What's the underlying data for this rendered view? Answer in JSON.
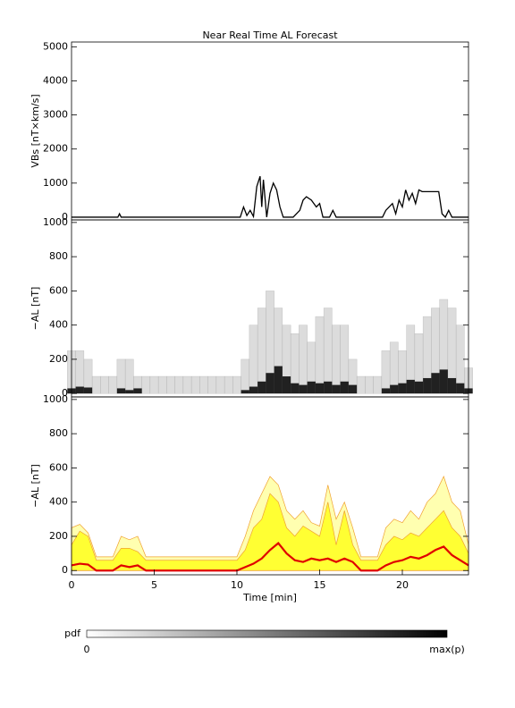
{
  "chart_data": [
    {
      "type": "line",
      "title": "Near Real Time AL Forecast",
      "ylabel": "VBs [nT×km/s]",
      "x": [
        0,
        2.8,
        2.9,
        3.0,
        10.2,
        10.4,
        10.6,
        10.8,
        11.0,
        11.2,
        11.4,
        11.5,
        11.6,
        11.8,
        12.0,
        12.2,
        12.4,
        12.6,
        12.8,
        13.0,
        13.4,
        13.8,
        14.0,
        14.2,
        14.5,
        14.8,
        15.0,
        15.2,
        15.4,
        15.6,
        15.8,
        16.0,
        18.6,
        18.8,
        19.0,
        19.4,
        19.6,
        19.8,
        20.0,
        20.2,
        20.4,
        20.6,
        20.8,
        21.0,
        21.2,
        21.6,
        22.2,
        22.4,
        22.6,
        22.8,
        23.0,
        23.6,
        24
      ],
      "series": [
        {
          "color": "#000000",
          "values": [
            0,
            0,
            100,
            0,
            0,
            300,
            50,
            200,
            20,
            900,
            1200,
            300,
            1100,
            0,
            700,
            1000,
            800,
            300,
            0,
            0,
            0,
            200,
            500,
            600,
            500,
            300,
            400,
            0,
            0,
            0,
            200,
            0,
            0,
            0,
            200,
            400,
            100,
            500,
            300,
            800,
            500,
            700,
            400,
            800,
            750,
            750,
            750,
            100,
            0,
            200,
            0,
            0,
            0
          ]
        }
      ],
      "xlim": [
        0,
        24
      ],
      "ylim": [
        -80,
        5140
      ],
      "yticks": [
        0,
        1000,
        2000,
        3000,
        4000,
        5000
      ]
    },
    {
      "type": "heatmap",
      "ylabel": "−AL [nT]",
      "x": [
        0,
        0.5,
        1,
        1.5,
        2,
        2.5,
        3,
        3.5,
        4,
        4.5,
        5,
        5.5,
        6,
        6.5,
        7,
        7.5,
        8,
        8.5,
        9,
        9.5,
        10,
        10.5,
        11,
        11.5,
        12,
        12.5,
        13,
        13.5,
        14,
        14.5,
        15,
        15.5,
        16,
        16.5,
        17,
        17.5,
        18,
        18.5,
        19,
        19.5,
        20,
        20.5,
        21,
        21.5,
        22,
        22.5,
        23,
        23.5,
        24
      ],
      "series": [
        {
          "color": "#d4d4d4",
          "values": [
            250,
            250,
            200,
            100,
            100,
            100,
            200,
            200,
            100,
            100,
            100,
            100,
            100,
            100,
            100,
            100,
            100,
            100,
            100,
            100,
            100,
            200,
            400,
            500,
            600,
            500,
            400,
            350,
            400,
            300,
            450,
            500,
            400,
            400,
            200,
            100,
            100,
            100,
            250,
            300,
            250,
            400,
            350,
            450,
            500,
            550,
            500,
            400,
            150
          ]
        },
        {
          "color": "#000000",
          "values": [
            30,
            40,
            35,
            0,
            0,
            0,
            30,
            20,
            30,
            0,
            0,
            0,
            0,
            0,
            0,
            0,
            0,
            0,
            0,
            0,
            0,
            20,
            40,
            70,
            120,
            160,
            100,
            60,
            50,
            70,
            60,
            70,
            50,
            70,
            50,
            0,
            0,
            0,
            30,
            50,
            60,
            80,
            70,
            90,
            120,
            140,
            90,
            60,
            30
          ]
        }
      ],
      "xlim": [
        0,
        24
      ],
      "ylim": [
        -20,
        1015
      ],
      "yticks": [
        0,
        200,
        400,
        600,
        800,
        1000
      ]
    },
    {
      "type": "area",
      "ylabel": "−AL [nT]",
      "xlabel": "Time [min]",
      "x": [
        0,
        0.5,
        1,
        1.5,
        2,
        2.5,
        3,
        3.5,
        4,
        4.5,
        5,
        5.5,
        6,
        6.5,
        7,
        7.5,
        8,
        8.5,
        9,
        9.5,
        10,
        10.5,
        11,
        11.5,
        12,
        12.5,
        13,
        13.5,
        14,
        14.5,
        15,
        15.5,
        16,
        16.5,
        17,
        17.5,
        18,
        18.5,
        19,
        19.5,
        20,
        20.5,
        21,
        21.5,
        22,
        22.5,
        23,
        23.5,
        24
      ],
      "series": [
        {
          "color": "#ffffb0",
          "values": [
            250,
            270,
            220,
            80,
            80,
            80,
            200,
            180,
            200,
            80,
            80,
            80,
            80,
            80,
            80,
            80,
            80,
            80,
            80,
            80,
            80,
            200,
            350,
            450,
            550,
            500,
            350,
            300,
            350,
            280,
            260,
            500,
            300,
            400,
            250,
            80,
            80,
            80,
            250,
            300,
            280,
            350,
            300,
            400,
            450,
            550,
            400,
            350,
            150
          ]
        },
        {
          "color": "#ffff33",
          "values": [
            150,
            230,
            200,
            60,
            60,
            60,
            130,
            130,
            110,
            60,
            60,
            60,
            60,
            60,
            60,
            60,
            60,
            60,
            60,
            60,
            60,
            120,
            250,
            300,
            450,
            400,
            250,
            200,
            260,
            230,
            200,
            400,
            150,
            350,
            150,
            60,
            60,
            60,
            150,
            200,
            180,
            220,
            200,
            250,
            300,
            350,
            250,
            200,
            100
          ]
        },
        {
          "color": "#e00000",
          "values": [
            30,
            40,
            35,
            0,
            0,
            0,
            30,
            20,
            30,
            0,
            0,
            0,
            0,
            0,
            0,
            0,
            0,
            0,
            0,
            0,
            0,
            20,
            40,
            70,
            120,
            160,
            100,
            60,
            50,
            70,
            60,
            70,
            50,
            70,
            50,
            0,
            0,
            0,
            30,
            50,
            60,
            80,
            70,
            90,
            120,
            140,
            90,
            60,
            30
          ]
        }
      ],
      "outline_color": "#f0a030",
      "xlim": [
        0,
        24
      ],
      "ylim": [
        -25,
        1015
      ],
      "yticks": [
        0,
        200,
        400,
        600,
        800,
        1000
      ],
      "xticks": [
        0,
        5,
        10,
        15,
        20
      ]
    }
  ],
  "colorbar": {
    "label": "pdf",
    "min_label": "0",
    "max_label": "max(p)"
  }
}
